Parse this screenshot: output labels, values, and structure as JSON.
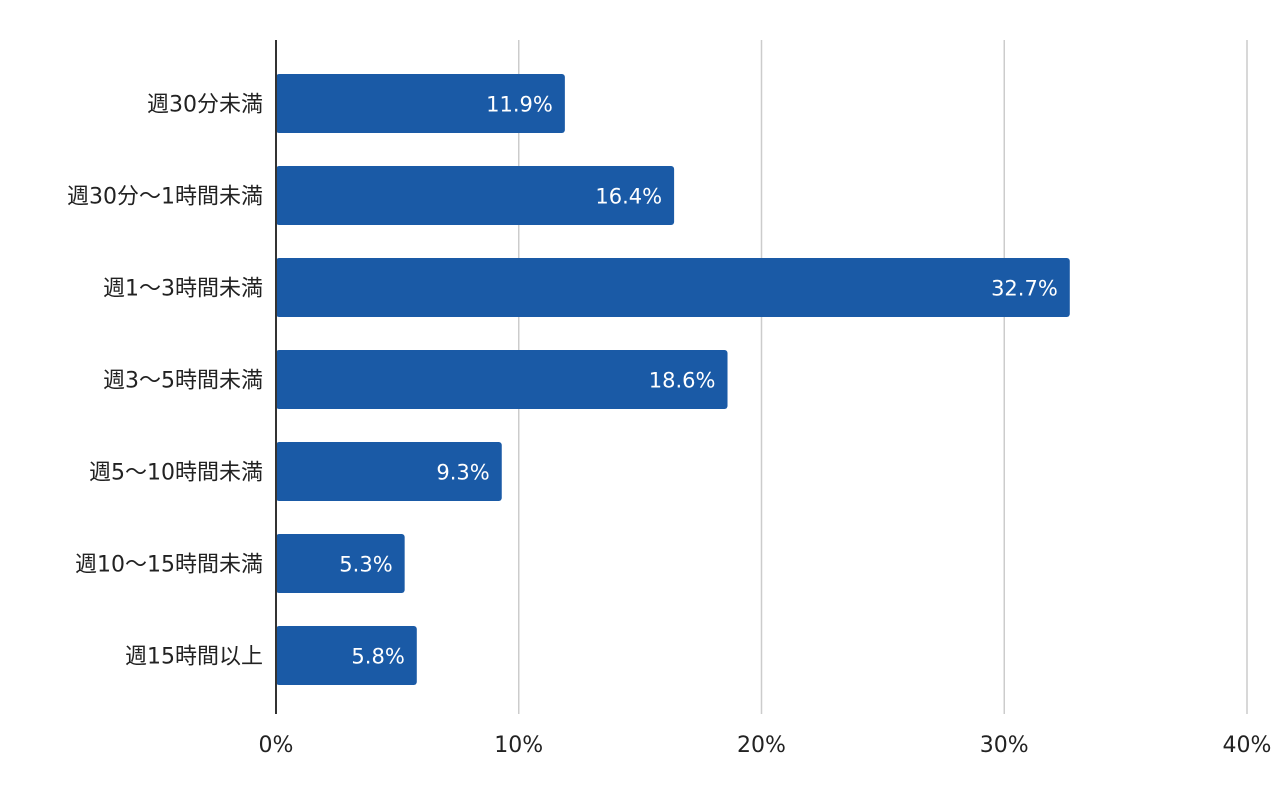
{
  "chart_data": {
    "type": "bar",
    "orientation": "horizontal",
    "categories": [
      "週30分未満",
      "週30分〜1時間未満",
      "週1〜3時間未満",
      "週3〜5時間未満",
      "週5〜10時間未満",
      "週10〜15時間未満",
      "週15時間以上"
    ],
    "values": [
      11.9,
      16.4,
      32.7,
      18.6,
      9.3,
      5.3,
      5.8
    ],
    "value_labels": [
      "11.9%",
      "16.4%",
      "32.7%",
      "18.6%",
      "9.3%",
      "5.3%",
      "5.8%"
    ],
    "x_ticks": [
      0,
      10,
      20,
      30,
      40
    ],
    "x_tick_labels": [
      "0%",
      "10%",
      "20%",
      "30%",
      "40%"
    ],
    "xlim": [
      0,
      40
    ],
    "grid": "vertical",
    "legend": "none",
    "title": "",
    "xlabel": "",
    "ylabel": "",
    "colors": {
      "bar": "#1a5aa6",
      "grid": "#cccccc",
      "axis": "#333333",
      "label_text": "#222222",
      "value_text": "#ffffff"
    }
  }
}
